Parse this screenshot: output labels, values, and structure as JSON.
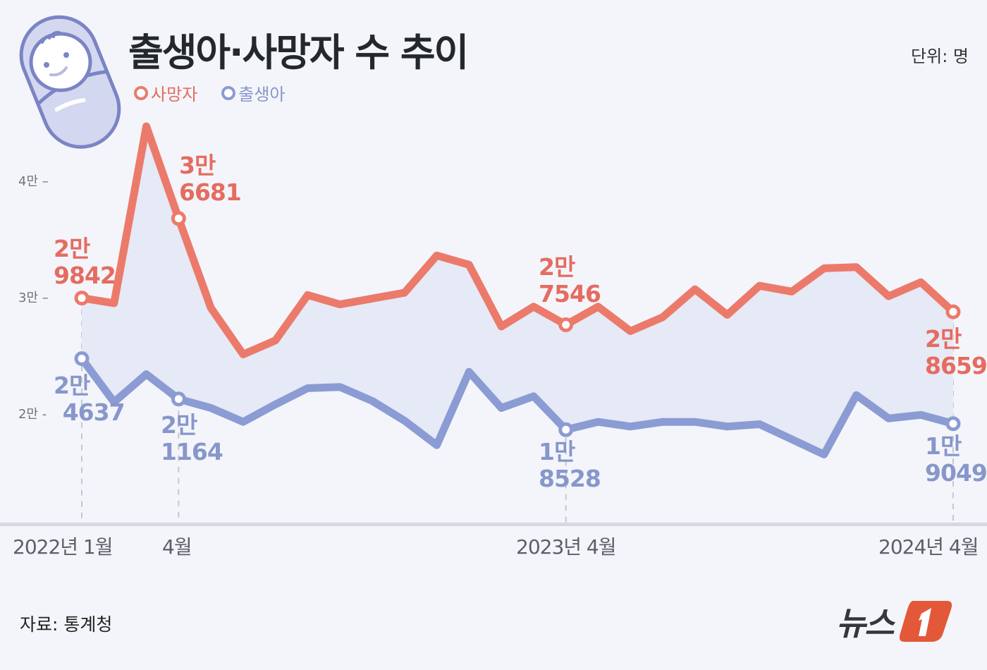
{
  "header": {
    "title": "출생아·사망자 수 추이",
    "unit": "단위: 명"
  },
  "legend": [
    {
      "label": "사망자",
      "color": "#ec7a6b"
    },
    {
      "label": "출생아",
      "color": "#8b9bd3"
    }
  ],
  "y_ticks": [
    {
      "label": "4만 –",
      "value": 40000
    },
    {
      "label": "3만 –",
      "value": 30000
    },
    {
      "label": "2만 -",
      "value": 20000
    }
  ],
  "x_labels": [
    {
      "label": "2022년 1월",
      "index": 0
    },
    {
      "label": "4월",
      "index": 3
    },
    {
      "label": "2023년 4월",
      "index": 15
    },
    {
      "label": "2024년 4월",
      "index": 27
    }
  ],
  "annotations": {
    "deaths_2022_01": {
      "line1": "2만",
      "line2": "9842"
    },
    "deaths_2022_04": {
      "line1": "3만",
      "line2": "6681"
    },
    "deaths_2023_04": {
      "line1": "2만",
      "line2": "7546"
    },
    "deaths_2024_04": {
      "line1": "2만",
      "line2": "8659"
    },
    "births_2022_01": {
      "line1": "2만",
      "line2": "4637"
    },
    "births_2022_04": {
      "line1": "2만",
      "line2": "1164"
    },
    "births_2023_04": {
      "line1": "1만",
      "line2": "8528"
    },
    "births_2024_04": {
      "line1": "1만",
      "line2": "9049"
    }
  },
  "footer": {
    "source": "자료: 통계청",
    "logo_text": "뉴스",
    "logo_badge": "1"
  },
  "colors": {
    "deaths": "#ec7a6b",
    "births": "#8b9bd3",
    "fill": "#e6e9f6",
    "background": "#f4f5fa",
    "logo_accent": "#e4583a"
  },
  "chart_data": {
    "type": "line",
    "title": "출생아·사망자 수 추이",
    "unit": "명",
    "xlabel": "",
    "ylabel": "",
    "ylim": [
      10000,
      45000
    ],
    "y_ticks": [
      20000,
      30000,
      40000
    ],
    "grid": false,
    "legend_position": "top-left",
    "x": [
      "2022-01",
      "2022-02",
      "2022-03",
      "2022-04",
      "2022-05",
      "2022-06",
      "2022-07",
      "2022-08",
      "2022-09",
      "2022-10",
      "2022-11",
      "2022-12",
      "2023-01",
      "2023-02",
      "2023-03",
      "2023-04",
      "2023-05",
      "2023-06",
      "2023-07",
      "2023-08",
      "2023-09",
      "2023-10",
      "2023-11",
      "2023-12",
      "2024-01",
      "2024-02",
      "2024-03",
      "2024-04"
    ],
    "series": [
      {
        "name": "사망자",
        "color": "#ec7a6b",
        "values": [
          29842,
          29400,
          44600,
          36681,
          29000,
          25000,
          26200,
          30100,
          29300,
          29800,
          30300,
          33500,
          32700,
          27400,
          29100,
          27546,
          29100,
          27000,
          28200,
          30600,
          28400,
          30900,
          30400,
          32400,
          32500,
          30000,
          31200,
          28659
        ]
      },
      {
        "name": "출생아",
        "color": "#8b9bd3",
        "values": [
          24637,
          20900,
          23300,
          21164,
          20400,
          19200,
          20700,
          22100,
          22200,
          21000,
          19300,
          17200,
          23500,
          20400,
          21400,
          18528,
          19200,
          18800,
          19200,
          19200,
          18800,
          19000,
          17700,
          16400,
          21500,
          19500,
          19800,
          19049
        ]
      }
    ],
    "annotations": [
      {
        "series": "사망자",
        "x": "2022-01",
        "text": "2만 9842"
      },
      {
        "series": "사망자",
        "x": "2022-04",
        "text": "3만 6681"
      },
      {
        "series": "사망자",
        "x": "2023-04",
        "text": "2만 7546"
      },
      {
        "series": "사망자",
        "x": "2024-04",
        "text": "2만 8659"
      },
      {
        "series": "출생아",
        "x": "2022-01",
        "text": "2만 4637"
      },
      {
        "series": "출생아",
        "x": "2022-04",
        "text": "2만 1164"
      },
      {
        "series": "출생아",
        "x": "2023-04",
        "text": "1만 8528"
      },
      {
        "series": "출생아",
        "x": "2024-04",
        "text": "1만 9049"
      }
    ]
  }
}
